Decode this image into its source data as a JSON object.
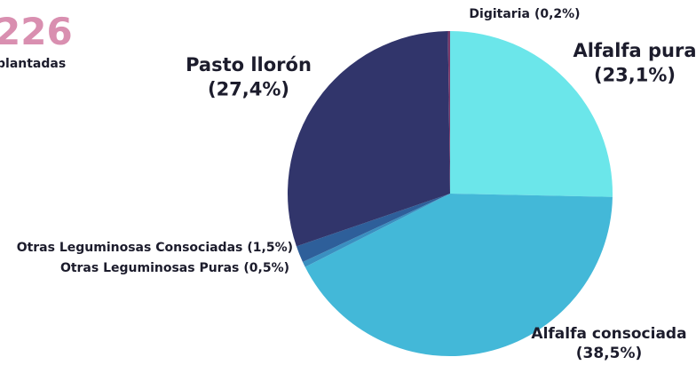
{
  "chart_data": {
    "type": "pie",
    "annotations": [
      "226",
      "plantadas"
    ],
    "categories": [
      "Alfalfa pura",
      "Alfalfa consociada",
      "Otras Leguminosas Puras",
      "Otras Leguminosas Consociadas",
      "Pasto llorón",
      "Digitaria"
    ],
    "values": [
      23.1,
      38.5,
      0.5,
      1.5,
      27.4,
      0.2
    ],
    "value_labels": [
      "(23,1%)",
      "(38,5%)",
      "(0,5%)",
      "(1,5%)",
      "(27,4%)",
      "(0,2%)"
    ],
    "colors": [
      "#6be6ea",
      "#43b8d8",
      "#3a8fc0",
      "#2e5f9a",
      "#31356b",
      "#7a3a6a"
    ]
  }
}
